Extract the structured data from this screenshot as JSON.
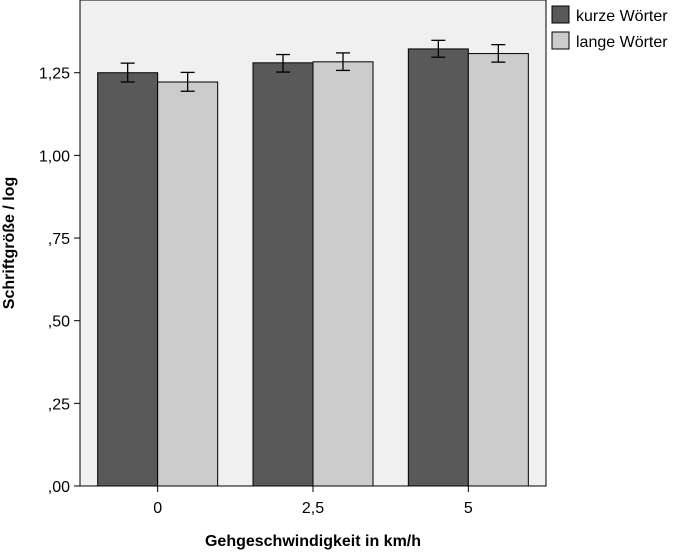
{
  "chart_data": {
    "type": "bar",
    "categories": [
      "0",
      "2,5",
      "5"
    ],
    "series": [
      {
        "name": "kurze Wörter",
        "values": [
          1.25,
          1.28,
          1.322
        ],
        "error_low": [
          1.222,
          1.252,
          1.297
        ],
        "error_high": [
          1.279,
          1.305,
          1.348
        ],
        "color": "#595959"
      },
      {
        "name": "lange Wörter",
        "values": [
          1.222,
          1.283,
          1.308
        ],
        "error_low": [
          1.194,
          1.257,
          1.282
        ],
        "error_high": [
          1.251,
          1.31,
          1.335
        ],
        "color": "#cccccc"
      }
    ],
    "xlabel": "Gehgeschwindigkeit in km/h",
    "ylabel": "Schriftgröße / log",
    "ylim": [
      0,
      1.47
    ],
    "yticks": [
      0,
      0.25,
      0.5,
      0.75,
      1.0,
      1.25
    ],
    "ytick_labels": [
      ",00",
      ",25",
      ",50",
      ",75",
      "1,00",
      "1,25"
    ],
    "grid": false,
    "legend_position": "top-right",
    "plot_background": "#f0f0f0"
  }
}
